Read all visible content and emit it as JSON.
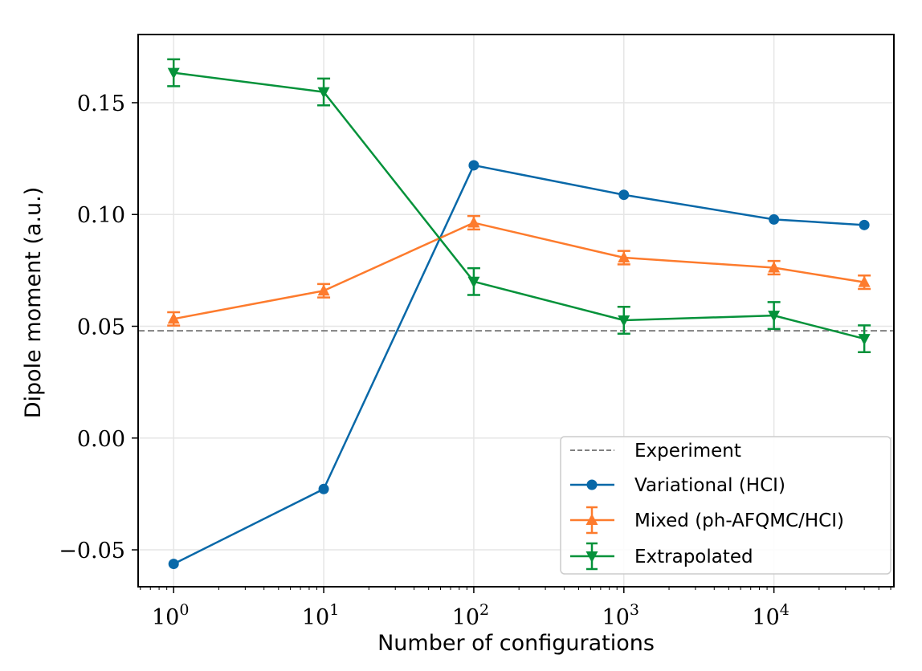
{
  "chart_data": {
    "type": "line",
    "title": "",
    "xlabel": "Number of configurations",
    "ylabel": "Dipole moment (a.u.)",
    "xscale": "log",
    "xlim": [
      0.58,
      63000
    ],
    "ylim": [
      -0.0665,
      0.1805
    ],
    "grid": true,
    "x_ticks": [
      {
        "value": 1,
        "base": "10",
        "exp": "0"
      },
      {
        "value": 10,
        "base": "10",
        "exp": "1"
      },
      {
        "value": 100,
        "base": "10",
        "exp": "2"
      },
      {
        "value": 1000,
        "base": "10",
        "exp": "3"
      },
      {
        "value": 10000,
        "base": "10",
        "exp": "4"
      }
    ],
    "y_ticks": [
      {
        "value": -0.05,
        "label": "−0.05"
      },
      {
        "value": 0.0,
        "label": "0.00"
      },
      {
        "value": 0.05,
        "label": "0.05"
      },
      {
        "value": 0.1,
        "label": "0.10"
      },
      {
        "value": 0.15,
        "label": "0.15"
      }
    ],
    "x": [
      1,
      10,
      100,
      1000,
      10000,
      40000
    ],
    "reference_line": {
      "name": "Experiment",
      "value": 0.048,
      "color": "#808080",
      "style": "dashed"
    },
    "series": [
      {
        "name": "Variational (HCI)",
        "color": "#0868a8",
        "marker": "circle",
        "values": [
          -0.0563,
          -0.0228,
          0.122,
          0.1088,
          0.0978,
          0.0953
        ],
        "errors": null
      },
      {
        "name": "Mixed (ph-AFQMC/HCI)",
        "color": "#fd7b2d",
        "marker": "triangle-up",
        "values": [
          0.0533,
          0.0659,
          0.0963,
          0.0807,
          0.0762,
          0.0697
        ],
        "errors": [
          0.003,
          0.003,
          0.003,
          0.003,
          0.003,
          0.003
        ]
      },
      {
        "name": "Extrapolated",
        "color": "#05923a",
        "marker": "triangle-down",
        "values": [
          0.1634,
          0.1548,
          0.07,
          0.0527,
          0.0548,
          0.0444
        ],
        "errors": [
          0.006,
          0.006,
          0.006,
          0.006,
          0.006,
          0.006
        ]
      }
    ],
    "legend": {
      "position": "lower-right",
      "entries": [
        "Experiment",
        "Variational (HCI)",
        "Mixed (ph-AFQMC/HCI)",
        "Extrapolated"
      ]
    }
  }
}
